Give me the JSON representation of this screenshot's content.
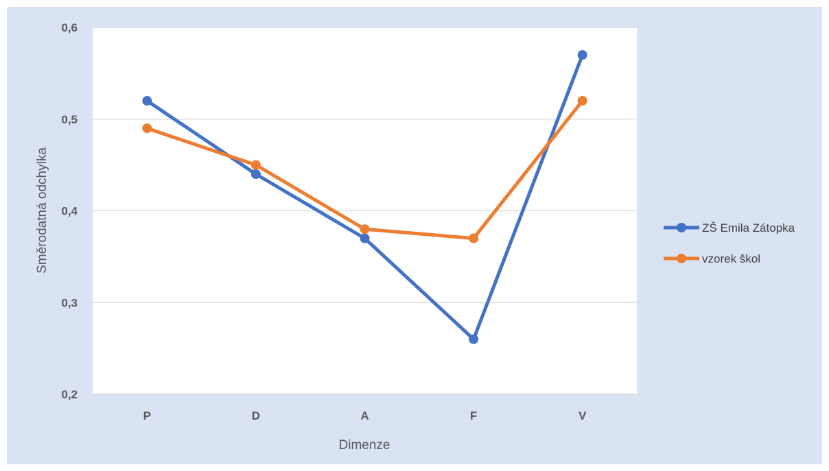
{
  "chart_data": {
    "type": "line",
    "title": "",
    "xlabel": "Dimenze",
    "ylabel": "Směrodatná odchylka",
    "categories": [
      "P",
      "D",
      "A",
      "F",
      "V"
    ],
    "ylim": [
      0.2,
      0.6
    ],
    "yticks": [
      0.2,
      0.3,
      0.4,
      0.5,
      0.6
    ],
    "ytick_labels": [
      "0,2",
      "0,3",
      "0,4",
      "0,5",
      "0,6"
    ],
    "grid": true,
    "legend_position": "right",
    "series": [
      {
        "name": "ZŠ Emila Zátopka",
        "color": "#4472c4",
        "values": [
          0.52,
          0.44,
          0.37,
          0.26,
          0.57
        ]
      },
      {
        "name": "vzorek škol",
        "color": "#ed7d31",
        "values": [
          0.49,
          0.45,
          0.38,
          0.37,
          0.52
        ]
      }
    ]
  }
}
